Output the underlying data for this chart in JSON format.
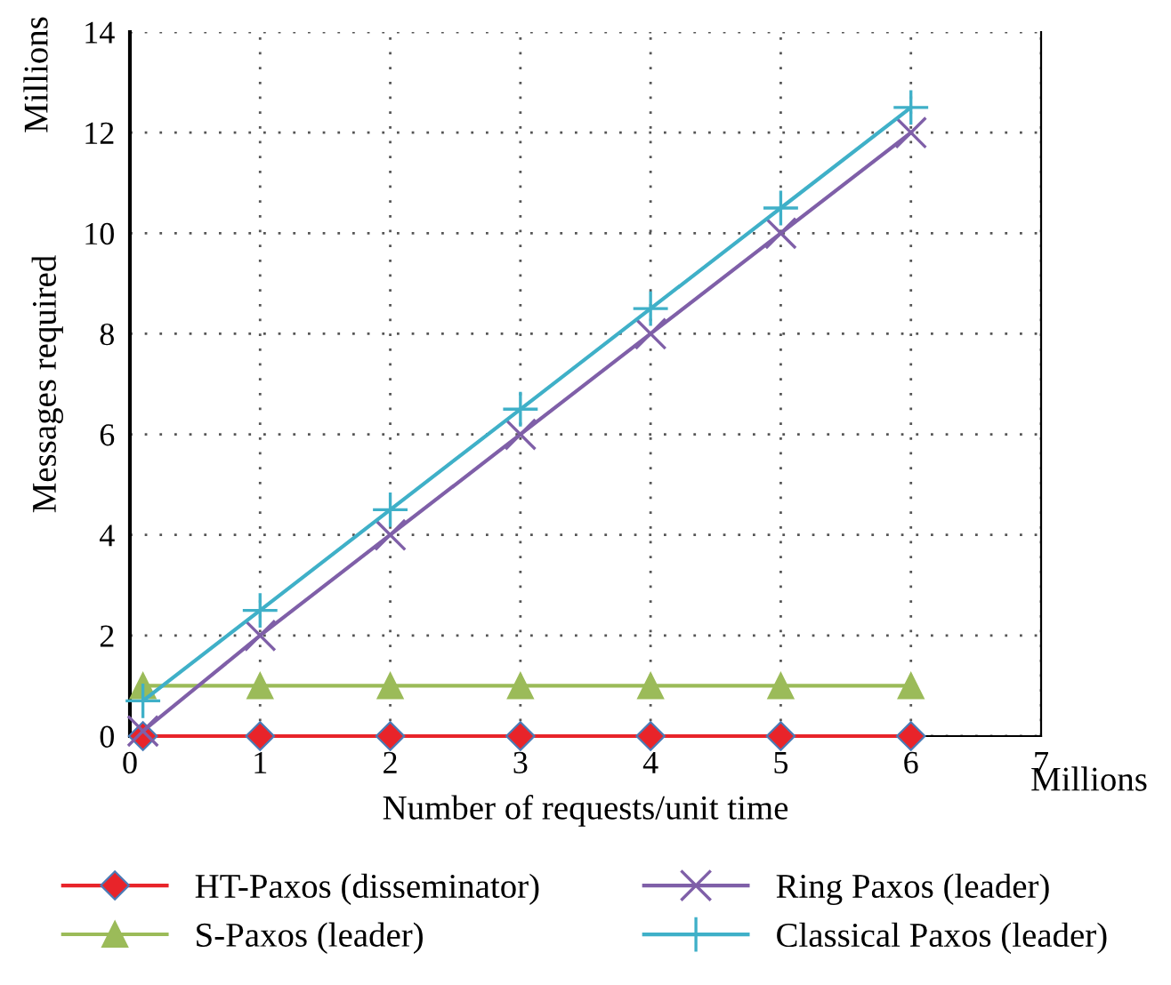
{
  "chart_data": {
    "type": "line",
    "xlabel": "Number of requests/unit time",
    "ylabel": "Messages required",
    "annotations": [
      "Millions",
      "Millions"
    ],
    "x": [
      0.1,
      1,
      2,
      3,
      4,
      5,
      6
    ],
    "series": [
      {
        "name": "HT-Paxos (disseminator)",
        "color": "#e8242a",
        "marker": "diamond",
        "values": [
          0,
          0,
          0,
          0,
          0,
          0,
          0
        ]
      },
      {
        "name": "S-Paxos (leader)",
        "color": "#9bbb59",
        "marker": "triangle",
        "values": [
          1,
          1,
          1,
          1,
          1,
          1,
          1
        ]
      },
      {
        "name": "Ring Paxos (leader)",
        "color": "#7f5fa8",
        "marker": "cross",
        "values": [
          0.1,
          2,
          4,
          6,
          8,
          10,
          12
        ]
      },
      {
        "name": "Classical Paxos (leader)",
        "color": "#3fb0c8",
        "marker": "plus",
        "values": [
          0.7,
          2.5,
          4.5,
          6.5,
          8.5,
          10.5,
          12.5
        ]
      }
    ],
    "xlim": [
      0,
      7
    ],
    "xticks": [
      0,
      1,
      2,
      3,
      4,
      5,
      6,
      7
    ],
    "ylim": [
      0,
      14
    ],
    "yticks": [
      0,
      2,
      4,
      6,
      8,
      10,
      12,
      14
    ],
    "grid": true,
    "legend": "bottom",
    "line_style": "solid"
  }
}
